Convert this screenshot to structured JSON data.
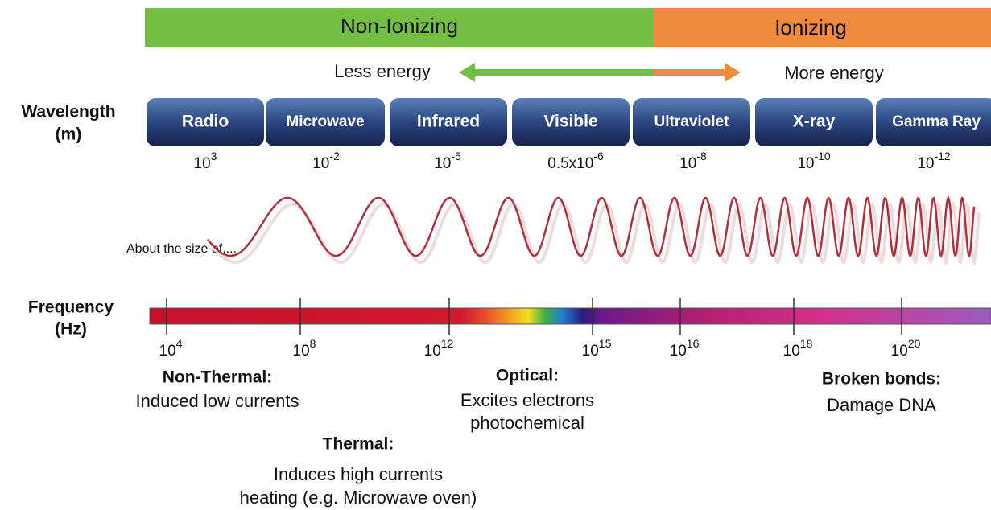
{
  "ionization": {
    "non_ionizing": "Non-Ionizing",
    "ionizing": "Ionizing"
  },
  "energy": {
    "less": "Less energy",
    "more": "More energy"
  },
  "wavelength": {
    "label": [
      "Wavelength",
      "(m)"
    ],
    "bands": [
      {
        "name": "Radio",
        "base": "10",
        "exp": "3"
      },
      {
        "name": "Microwave",
        "base": "10",
        "exp": "-2"
      },
      {
        "name": "Infrared",
        "base": "10",
        "exp": "-5"
      },
      {
        "name": "Visible",
        "base": "0.5x10",
        "exp": "-6"
      },
      {
        "name": "Ultraviolet",
        "base": "10",
        "exp": "-8"
      },
      {
        "name": "X-ray",
        "base": "10",
        "exp": "-10"
      },
      {
        "name": "Gamma Ray",
        "base": "10",
        "exp": "-12"
      }
    ]
  },
  "size_note": "About the size of....",
  "frequency": {
    "label": [
      "Frequency",
      "(Hz)"
    ],
    "ticks": [
      {
        "base": "10",
        "exp": "4"
      },
      {
        "base": "10",
        "exp": "8"
      },
      {
        "base": "10",
        "exp": "12"
      },
      {
        "base": "10",
        "exp": "15"
      },
      {
        "base": "10",
        "exp": "16"
      },
      {
        "base": "10",
        "exp": "18"
      },
      {
        "base": "10",
        "exp": "20"
      }
    ]
  },
  "effects": [
    {
      "title": "Non-Thermal:",
      "lines": [
        "Induced low currents"
      ]
    },
    {
      "title": "Optical:",
      "lines": [
        "Excites electrons",
        "photochemical"
      ]
    },
    {
      "title": "Broken bonds:",
      "lines": [
        "Damage DNA"
      ]
    },
    {
      "title": "Thermal:",
      "lines": [
        "Induces high currents",
        "heating (e.g. Microwave oven)"
      ]
    }
  ]
}
